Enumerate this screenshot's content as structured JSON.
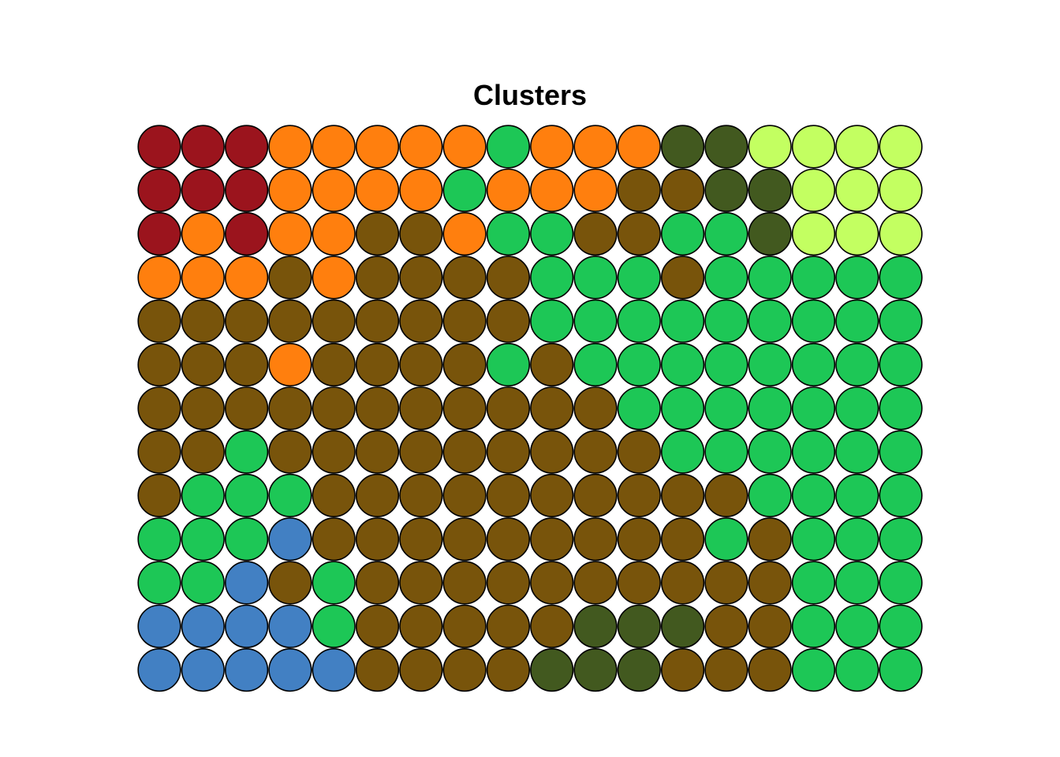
{
  "chart_data": {
    "type": "heatmap",
    "subtype": "som-cluster-map",
    "title": "Clusters",
    "grid": {
      "cols": 18,
      "rows": 13
    },
    "legend": null,
    "palette": {
      "1": "#9b141d",
      "2": "#ff7f0e",
      "3": "#1dc756",
      "4": "#42591f",
      "5": "#c3ff61",
      "6": "#78540b",
      "7": "#4280c3"
    },
    "cells_by_row_top_to_bottom": [
      [
        1,
        1,
        1,
        2,
        2,
        2,
        2,
        2,
        3,
        2,
        2,
        2,
        4,
        4,
        5,
        5,
        5,
        5
      ],
      [
        1,
        1,
        1,
        2,
        2,
        2,
        2,
        3,
        2,
        2,
        2,
        6,
        6,
        4,
        4,
        5,
        5,
        5
      ],
      [
        1,
        2,
        1,
        2,
        2,
        6,
        6,
        2,
        3,
        3,
        6,
        6,
        3,
        3,
        4,
        5,
        5,
        5
      ],
      [
        2,
        2,
        2,
        6,
        2,
        6,
        6,
        6,
        6,
        3,
        3,
        3,
        6,
        3,
        3,
        3,
        3,
        3
      ],
      [
        6,
        6,
        6,
        6,
        6,
        6,
        6,
        6,
        6,
        3,
        3,
        3,
        3,
        3,
        3,
        3,
        3,
        3
      ],
      [
        6,
        6,
        6,
        2,
        6,
        6,
        6,
        6,
        3,
        6,
        3,
        3,
        3,
        3,
        3,
        3,
        3,
        3
      ],
      [
        6,
        6,
        6,
        6,
        6,
        6,
        6,
        6,
        6,
        6,
        6,
        3,
        3,
        3,
        3,
        3,
        3,
        3
      ],
      [
        6,
        6,
        3,
        6,
        6,
        6,
        6,
        6,
        6,
        6,
        6,
        6,
        3,
        3,
        3,
        3,
        3,
        3
      ],
      [
        6,
        3,
        3,
        3,
        6,
        6,
        6,
        6,
        6,
        6,
        6,
        6,
        6,
        6,
        3,
        3,
        3,
        3
      ],
      [
        3,
        3,
        3,
        7,
        6,
        6,
        6,
        6,
        6,
        6,
        6,
        6,
        6,
        3,
        6,
        3,
        3,
        3
      ],
      [
        3,
        3,
        7,
        6,
        3,
        6,
        6,
        6,
        6,
        6,
        6,
        6,
        6,
        6,
        6,
        3,
        3,
        3
      ],
      [
        7,
        7,
        7,
        7,
        3,
        6,
        6,
        6,
        6,
        6,
        4,
        4,
        4,
        6,
        6,
        3,
        3,
        3
      ],
      [
        7,
        7,
        7,
        7,
        7,
        6,
        6,
        6,
        6,
        4,
        4,
        4,
        6,
        6,
        6,
        3,
        3,
        3
      ]
    ]
  }
}
